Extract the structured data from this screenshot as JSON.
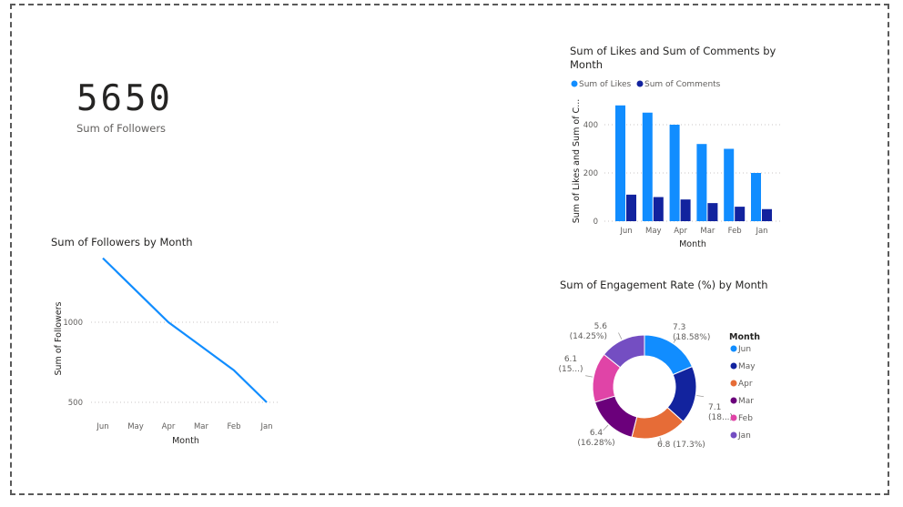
{
  "colors": {
    "likes": "#118DFF",
    "comments": "#12239E",
    "followers_line": "#118DFF",
    "donut": [
      "#118DFF",
      "#12239E",
      "#E66C37",
      "#6B007B",
      "#E044A7",
      "#744EC2"
    ]
  },
  "kpi": {
    "value": "5650",
    "label": "Sum of Followers"
  },
  "chart_data": [
    {
      "id": "followers",
      "type": "line",
      "title": "Sum of Followers by Month",
      "xlabel": "Month",
      "ylabel": "Sum of Followers",
      "categories": [
        "Jun",
        "May",
        "Apr",
        "Mar",
        "Feb",
        "Jan"
      ],
      "series": [
        {
          "values": [
            1400,
            1200,
            1000,
            850,
            700,
            500
          ]
        }
      ],
      "yticks": [
        500,
        1000
      ],
      "ylim": [
        400,
        1500
      ],
      "grid": true
    },
    {
      "id": "likes_comments",
      "type": "bar",
      "title": "Sum of Likes and Sum of Comments by Month",
      "xlabel": "Month",
      "ylabel": "Sum of Likes and Sum of C...",
      "categories": [
        "Jun",
        "May",
        "Apr",
        "Mar",
        "Feb",
        "Jan"
      ],
      "series": [
        {
          "name": "Sum of Likes",
          "values": [
            480,
            450,
            400,
            320,
            300,
            200
          ]
        },
        {
          "name": "Sum of Comments",
          "values": [
            110,
            100,
            90,
            75,
            60,
            50
          ]
        }
      ],
      "yticks": [
        0,
        200,
        400
      ],
      "ylim": [
        0,
        500
      ],
      "legend": "top-left",
      "grid": true
    },
    {
      "id": "engagement",
      "type": "pie",
      "title": "Sum of Engagement Rate (%) by Month",
      "legend_title": "Month",
      "legend": "right",
      "slices": [
        {
          "label": "Jun",
          "value": 7.3,
          "text": [
            "7.3",
            "(18.58%)"
          ]
        },
        {
          "label": "May",
          "value": 7.1,
          "text": [
            "7.1",
            "(18...)"
          ]
        },
        {
          "label": "Apr",
          "value": 6.8,
          "text": [
            "6.8 (17.3%)"
          ]
        },
        {
          "label": "Mar",
          "value": 6.4,
          "text": [
            "6.4",
            "(16.28%)"
          ]
        },
        {
          "label": "Feb",
          "value": 6.1,
          "text": [
            "6.1",
            "(15...)"
          ]
        },
        {
          "label": "Jan",
          "value": 5.6,
          "text": [
            "5.6",
            "(14.25%)"
          ]
        }
      ]
    }
  ]
}
